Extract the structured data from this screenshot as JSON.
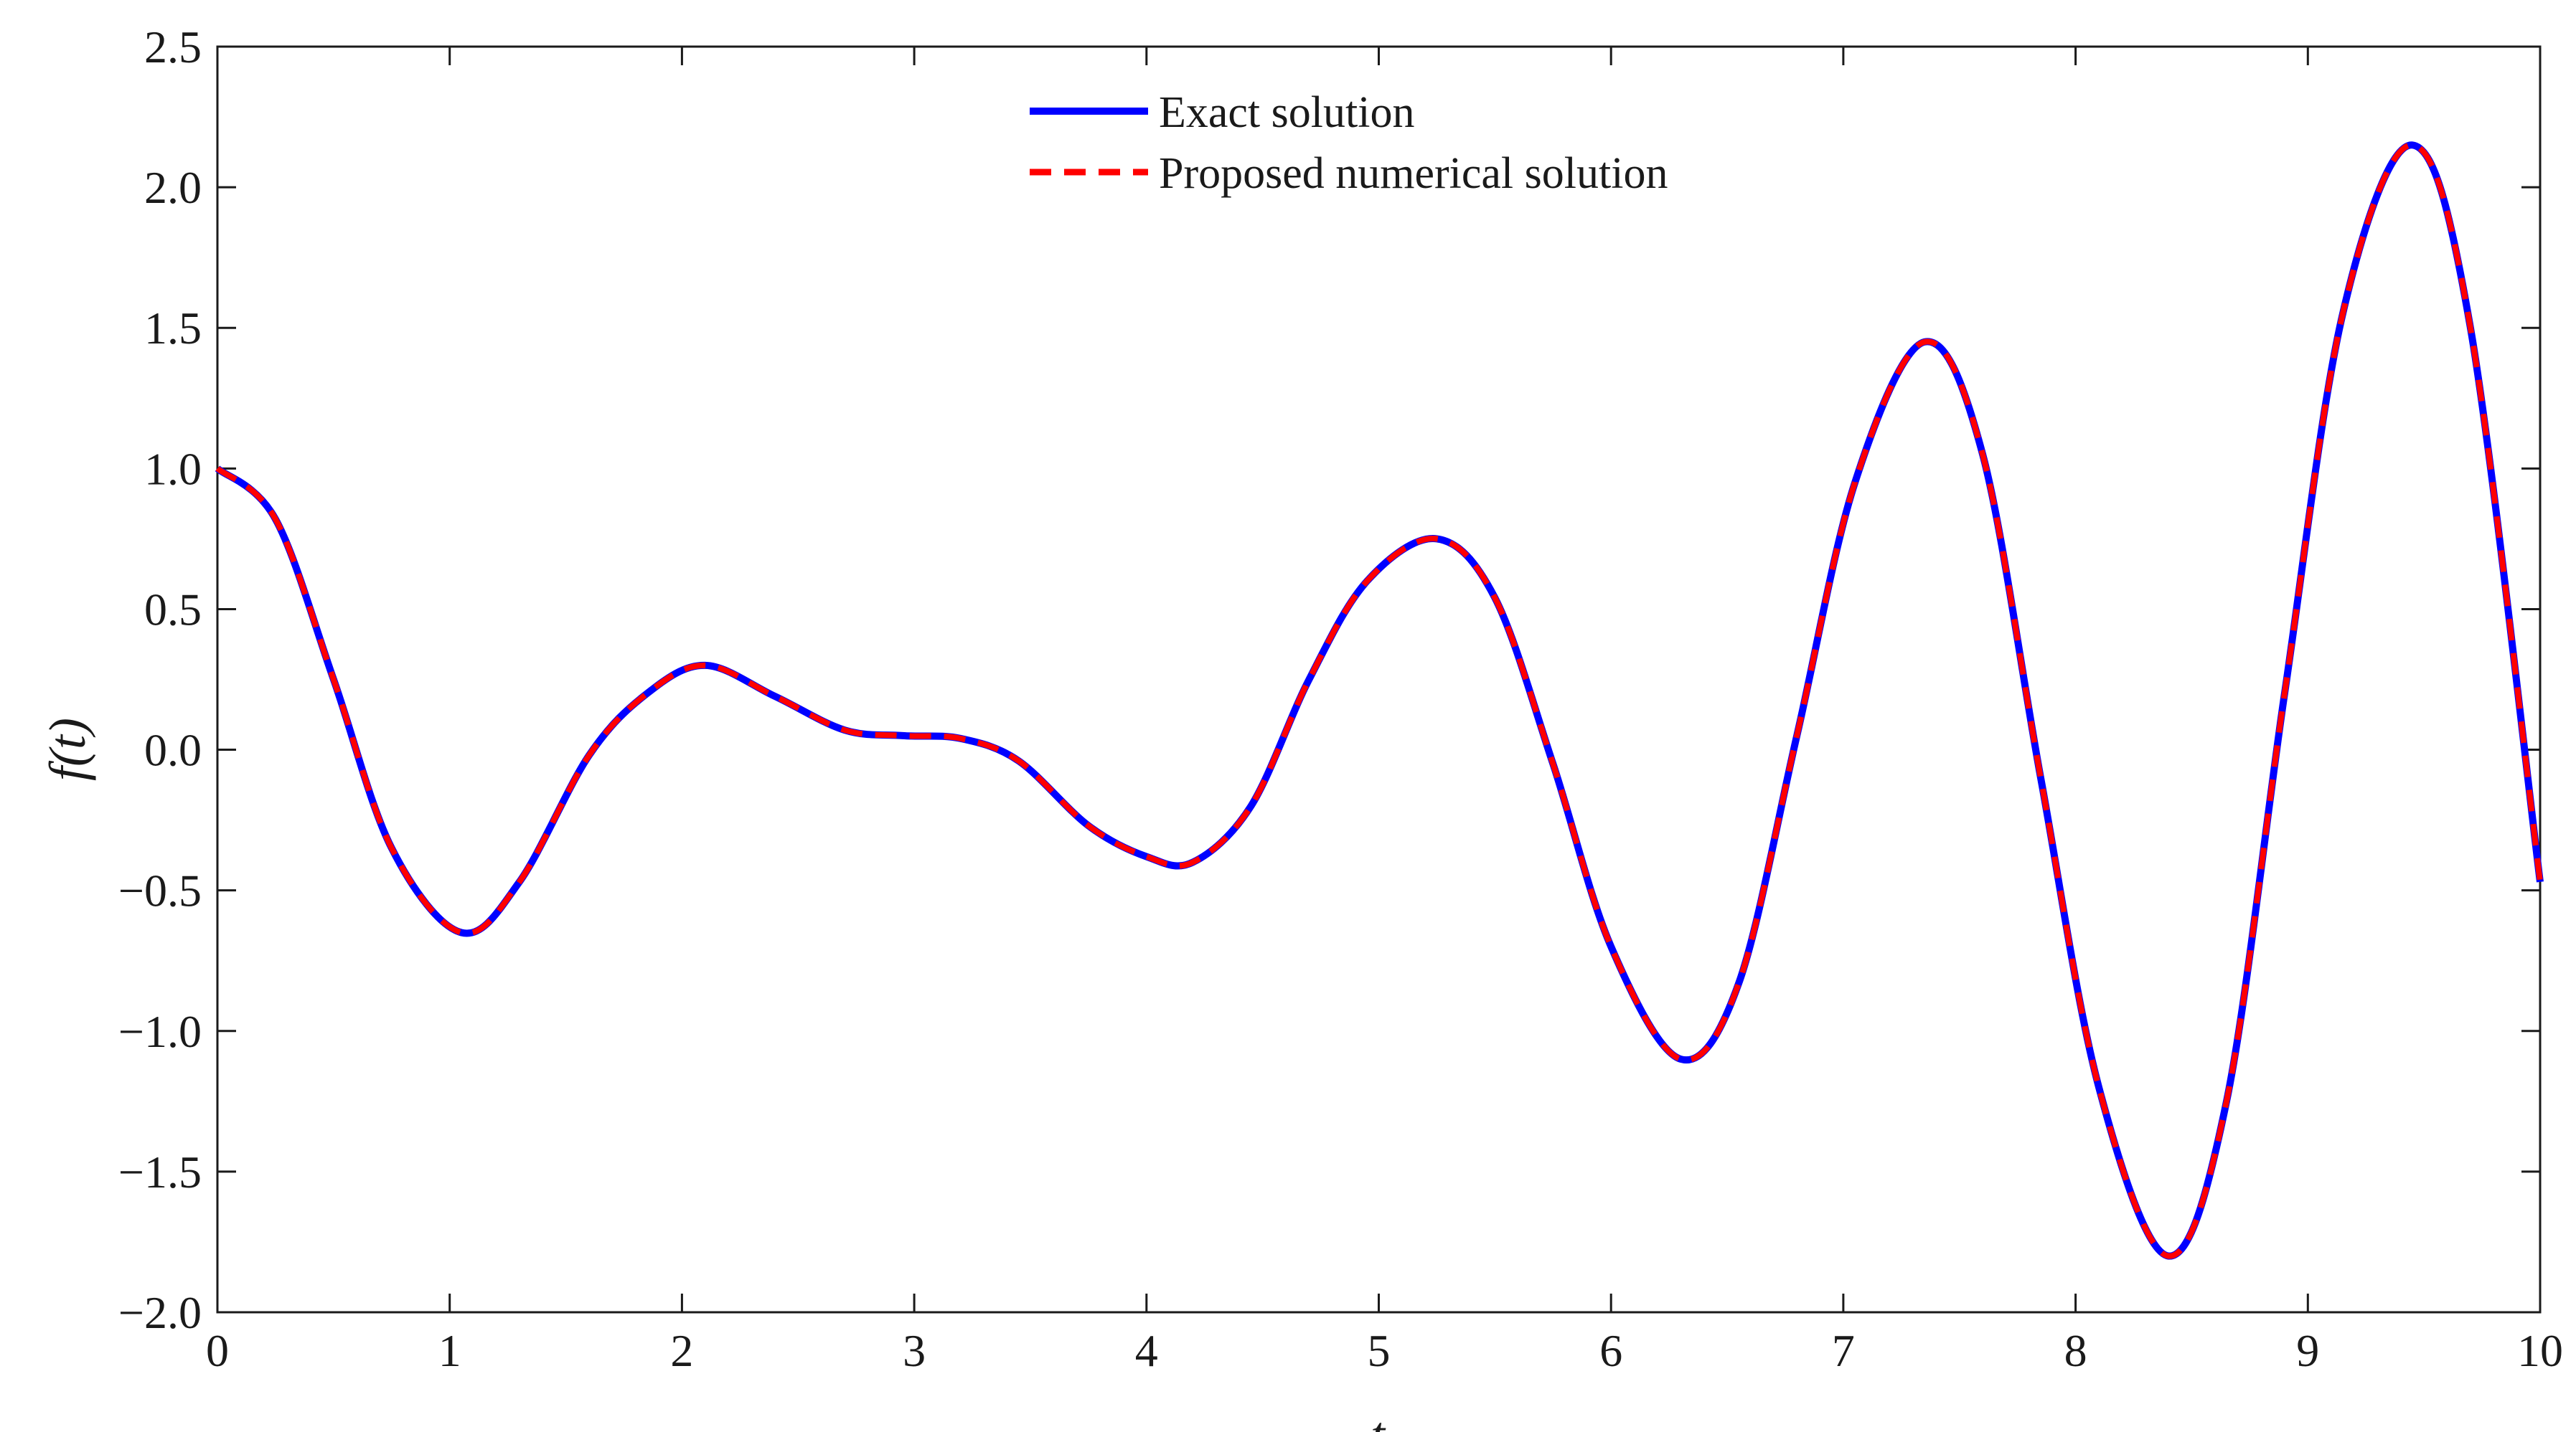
{
  "chart_data": {
    "type": "line",
    "xlabel": "t",
    "ylabel": "f(t)",
    "xlim": [
      0,
      10
    ],
    "ylim": [
      -2.0,
      2.5
    ],
    "x_ticks": [
      "0",
      "1",
      "2",
      "3",
      "4",
      "5",
      "6",
      "7",
      "8",
      "9",
      "10"
    ],
    "y_ticks": [
      "2.5",
      "2.0",
      "1.5",
      "1.0",
      "0.5",
      "0.0",
      "−0.5",
      "−1.0",
      "−1.5",
      "−2.0"
    ],
    "grid": false,
    "legend_position": "top-center",
    "series": [
      {
        "name": "Exact solution",
        "color": "#0000ff",
        "style": "solid",
        "x": [
          0,
          0.25,
          0.5,
          0.75,
          1.05,
          1.3,
          1.6,
          1.85,
          2.1,
          2.4,
          2.7,
          2.95,
          3.2,
          3.45,
          3.75,
          4.0,
          4.2,
          4.45,
          4.7,
          4.95,
          5.25,
          5.5,
          5.75,
          6.0,
          6.3,
          6.55,
          6.8,
          7.05,
          7.35,
          7.6,
          7.85,
          8.1,
          8.4,
          8.65,
          8.9,
          9.15,
          9.45,
          9.7,
          10.0
        ],
        "y": [
          1.0,
          0.82,
          0.25,
          -0.35,
          -0.65,
          -0.47,
          -0.02,
          0.2,
          0.3,
          0.19,
          0.07,
          0.05,
          0.04,
          -0.04,
          -0.27,
          -0.38,
          -0.4,
          -0.2,
          0.25,
          0.6,
          0.75,
          0.54,
          -0.05,
          -0.7,
          -1.1,
          -0.83,
          0.05,
          0.95,
          1.45,
          1.05,
          -0.1,
          -1.2,
          -1.8,
          -1.25,
          0.2,
          1.55,
          2.15,
          1.5,
          -0.47
        ]
      },
      {
        "name": "Proposed numerical solution",
        "color": "#ff0000",
        "style": "dashed",
        "x": [
          0,
          0.25,
          0.5,
          0.75,
          1.05,
          1.3,
          1.6,
          1.85,
          2.1,
          2.4,
          2.7,
          2.95,
          3.2,
          3.45,
          3.75,
          4.0,
          4.2,
          4.45,
          4.7,
          4.95,
          5.25,
          5.5,
          5.75,
          6.0,
          6.3,
          6.55,
          6.8,
          7.05,
          7.35,
          7.6,
          7.85,
          8.1,
          8.4,
          8.65,
          8.9,
          9.15,
          9.45,
          9.7,
          10.0
        ],
        "y": [
          1.0,
          0.82,
          0.25,
          -0.35,
          -0.65,
          -0.47,
          -0.02,
          0.2,
          0.3,
          0.19,
          0.07,
          0.05,
          0.04,
          -0.04,
          -0.27,
          -0.38,
          -0.4,
          -0.2,
          0.25,
          0.6,
          0.75,
          0.54,
          -0.05,
          -0.7,
          -1.1,
          -0.83,
          0.05,
          0.95,
          1.45,
          1.05,
          -0.1,
          -1.2,
          -1.8,
          -1.25,
          0.2,
          1.55,
          2.15,
          1.5,
          -0.47
        ]
      }
    ]
  }
}
